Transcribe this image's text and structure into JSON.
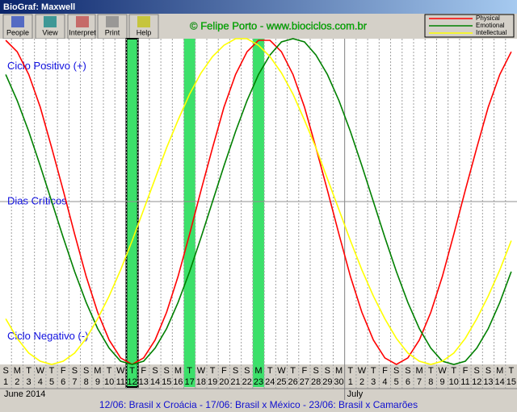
{
  "window": {
    "title": "BioGraf: Maxwell"
  },
  "toolbar": [
    "People",
    "View",
    "Interpret",
    "Print",
    "Help"
  ],
  "copyright": "© Felipe Porto - www.biociclos.com.br",
  "footer": "12/06: Brasil x Croácia - 17/06: Brasil x México - 23/06: Brasil x Camarões",
  "chart_data": {
    "type": "line",
    "categories": [
      1,
      2,
      3,
      4,
      5,
      6,
      7,
      8,
      9,
      10,
      11,
      12,
      13,
      14,
      15,
      16,
      17,
      18,
      19,
      20,
      21,
      22,
      23,
      24,
      25,
      26,
      27,
      28,
      29,
      30,
      1,
      2,
      3,
      4,
      5,
      6,
      7,
      8,
      9,
      10,
      11,
      12,
      13,
      14,
      15
    ],
    "weekdays": [
      "S",
      "M",
      "T",
      "W",
      "T",
      "F",
      "S",
      "S",
      "M",
      "T",
      "W",
      "T",
      "F",
      "S",
      "S",
      "M",
      "T",
      "W",
      "T",
      "F",
      "S",
      "S",
      "M",
      "T",
      "W",
      "T",
      "F",
      "S",
      "S",
      "M",
      "T",
      "W",
      "T",
      "F",
      "S",
      "S",
      "M",
      "T",
      "W",
      "T",
      "F",
      "S",
      "S",
      "M",
      "T"
    ],
    "months": [
      "June 2014",
      "July"
    ],
    "critical_days": [
      12,
      17,
      23
    ],
    "ylim": [
      -100,
      100
    ],
    "yticks": [
      {
        "value": 83,
        "label": "Ciclo Positivo (+)"
      },
      {
        "value": 0,
        "label": "Dias Críticos"
      },
      {
        "value": -83,
        "label": "Ciclo Negativo (-)"
      }
    ],
    "series": [
      {
        "name": "Physical",
        "color": "#ff0000",
        "values": [
          99,
          92,
          78,
          58,
          33,
          7,
          -20,
          -46,
          -68,
          -85,
          -96,
          -100,
          -96,
          -85,
          -68,
          -46,
          -20,
          7,
          33,
          58,
          78,
          92,
          99,
          99,
          92,
          78,
          58,
          33,
          7,
          -20,
          -46,
          -68,
          -85,
          -96,
          -100,
          -96,
          -85,
          -68,
          -46,
          -20,
          7,
          33,
          58,
          78,
          92
        ]
      },
      {
        "name": "Emotional",
        "color": "#008000",
        "values": [
          78,
          62,
          43,
          22,
          0,
          -22,
          -43,
          -62,
          -78,
          -90,
          -98,
          -100,
          -98,
          -90,
          -78,
          -62,
          -43,
          -22,
          0,
          22,
          43,
          62,
          78,
          90,
          98,
          100,
          98,
          90,
          78,
          62,
          43,
          22,
          0,
          -22,
          -43,
          -62,
          -78,
          -90,
          -98,
          -100,
          -98,
          -90,
          -78,
          -62,
          -43
        ]
      },
      {
        "name": "Intellectual",
        "color": "#ffff00",
        "values": [
          -72,
          -84,
          -93,
          -98,
          -100,
          -98,
          -93,
          -84,
          -72,
          -58,
          -42,
          -24,
          -5,
          14,
          33,
          50,
          66,
          79,
          89,
          96,
          100,
          100,
          96,
          89,
          79,
          66,
          50,
          33,
          14,
          -5,
          -24,
          -42,
          -58,
          -72,
          -84,
          -93,
          -98,
          -100,
          -98,
          -93,
          -84,
          -72,
          -58,
          -42,
          -24
        ]
      }
    ]
  }
}
